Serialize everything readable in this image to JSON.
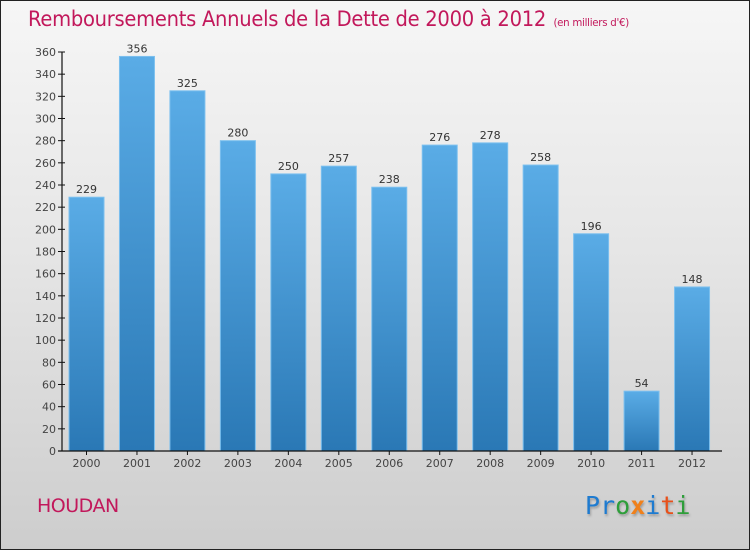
{
  "header": {
    "title": "Remboursements Annuels de la Dette de 2000 à 2012",
    "subtitle": "(en milliers d'€)"
  },
  "footer": {
    "city": "HOUDAN",
    "logo_letters": [
      {
        "ch": "P",
        "color": "#1e7bd0"
      },
      {
        "ch": "r",
        "color": "#1e7bd0"
      },
      {
        "ch": "o",
        "color": "#2e9e3a"
      },
      {
        "ch": "x",
        "color": "#f0801a"
      },
      {
        "ch": "i",
        "color": "#1e7bd0"
      },
      {
        "ch": "t",
        "color": "#e8501a"
      },
      {
        "ch": "i",
        "color": "#2e9e3a"
      }
    ]
  },
  "colors": {
    "title": "#c2185b",
    "bar_top": "#5aace6",
    "bar_bottom": "#2a78b5",
    "axis": "#111111"
  },
  "chart_data": {
    "type": "bar",
    "title": "Remboursements Annuels de la Dette de 2000 à 2012",
    "subtitle": "(en milliers d'€)",
    "xlabel": "",
    "ylabel": "",
    "categories": [
      "2000",
      "2001",
      "2002",
      "2003",
      "2004",
      "2005",
      "2006",
      "2007",
      "2008",
      "2009",
      "2010",
      "2011",
      "2012"
    ],
    "values": [
      229,
      356,
      325,
      280,
      250,
      257,
      238,
      276,
      278,
      258,
      196,
      54,
      148
    ],
    "ylim": [
      0,
      360
    ],
    "yticks": [
      0,
      20,
      40,
      60,
      80,
      100,
      120,
      140,
      160,
      180,
      200,
      220,
      240,
      260,
      280,
      300,
      320,
      340,
      360
    ],
    "grid": false,
    "legend": "none",
    "data_labels": true
  }
}
